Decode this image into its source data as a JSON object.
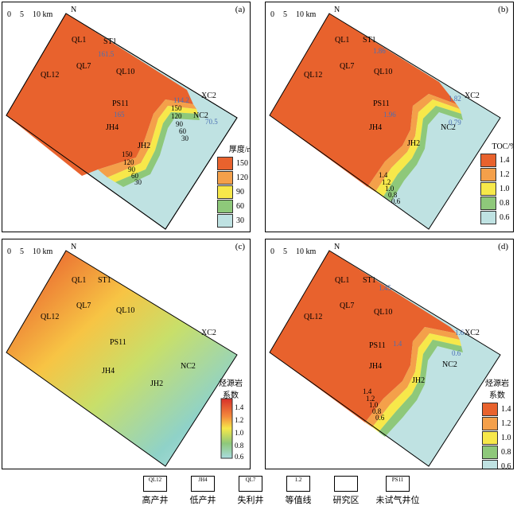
{
  "panels": [
    {
      "label": "(a)",
      "legend_title": "厚度/m",
      "legend_items": [
        "150",
        "120",
        "90",
        "60",
        "30"
      ],
      "isolines": [
        "150",
        "120",
        "90",
        "60",
        "30",
        "150",
        "120",
        "90",
        "60",
        "30"
      ],
      "well_values": {
        "ST1": "161.5",
        "XC2": "114.2",
        "PS11": "165",
        "NC2": "70.5"
      }
    },
    {
      "label": "(b)",
      "legend_title": "TOC/%",
      "legend_items": [
        "1.4",
        "1.2",
        "1.0",
        "0.8",
        "0.6"
      ],
      "isolines": [
        "1.4",
        "1.2",
        "1.0",
        "0.8",
        "0.6"
      ],
      "well_values": {
        "ST1": "1.86",
        "XC2": "1.82",
        "PS11": "1.96",
        "NC2": "0.79"
      }
    },
    {
      "label": "(c)",
      "legend_title": "烃源岩\n系数",
      "legend_items": [
        "1.4",
        "1.2",
        "1.0",
        "0.8",
        "0.6"
      ]
    },
    {
      "label": "(d)",
      "legend_title": "烃源岩\n系数",
      "legend_items": [
        "1.4",
        "1.2",
        "1.0",
        "0.8",
        "0.6"
      ],
      "isolines": [
        "1.4",
        "1.2",
        "1.0",
        "0.8",
        "0.6"
      ],
      "well_values": {
        "ST1": "1.45",
        "XC2": "1.6",
        "PS11": "1.4",
        "NC2": "0.6"
      }
    }
  ],
  "scale": {
    "zero": "0",
    "five": "5",
    "ten": "10 km",
    "north": "N"
  },
  "wells": [
    "QL1",
    "ST1",
    "QL7",
    "QL12",
    "QL10",
    "PS11",
    "XC2",
    "NC2",
    "JH4",
    "JH2"
  ],
  "colors": {
    "c150": "#e8622d",
    "c120": "#f4a04a",
    "c90": "#f7e84a",
    "c60": "#8ec87a",
    "c30": "#bfe2e2",
    "high": "#7a2f8f"
  },
  "bottom_legend": [
    {
      "box": "QL12",
      "label": "高产井"
    },
    {
      "box": "JH4",
      "label": "低产井"
    },
    {
      "box": "QL7",
      "label": "失利井"
    },
    {
      "box": "1.2",
      "label": "等值线"
    },
    {
      "box": "",
      "label": "研究区"
    },
    {
      "box": "PS11",
      "label": "未试气井位"
    }
  ]
}
